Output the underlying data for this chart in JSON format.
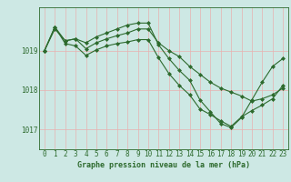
{
  "line1": [
    1019.0,
    1019.55,
    1019.25,
    1019.3,
    1019.2,
    1019.35,
    1019.45,
    1019.55,
    1019.65,
    1019.7,
    1019.7,
    1019.15,
    1018.8,
    1018.5,
    1018.25,
    1017.75,
    1017.45,
    1017.15,
    1017.05,
    1017.3,
    1017.75,
    1018.2,
    1018.6,
    1018.8
  ],
  "line2": [
    1019.0,
    1019.6,
    1019.25,
    1019.3,
    1019.05,
    1019.2,
    1019.3,
    1019.38,
    1019.45,
    1019.55,
    1019.55,
    1019.2,
    1019.0,
    1018.85,
    1018.6,
    1018.4,
    1018.2,
    1018.05,
    1017.95,
    1017.85,
    1017.72,
    1017.78,
    1017.88,
    1018.05
  ],
  "line3": [
    1019.0,
    1019.6,
    1019.18,
    1019.12,
    1018.88,
    1019.02,
    1019.12,
    1019.18,
    1019.22,
    1019.28,
    1019.28,
    1018.82,
    1018.42,
    1018.12,
    1017.88,
    1017.52,
    1017.38,
    1017.22,
    1017.08,
    1017.32,
    1017.48,
    1017.62,
    1017.78,
    1018.12
  ],
  "hours": [
    0,
    1,
    2,
    3,
    4,
    5,
    6,
    7,
    8,
    9,
    10,
    11,
    12,
    13,
    14,
    15,
    16,
    17,
    18,
    19,
    20,
    21,
    22,
    23
  ],
  "line_color": "#2d6a2d",
  "bg_color": "#cde8e4",
  "grid_color": "#e8b0b0",
  "ylabel_ticks": [
    1017,
    1018,
    1019
  ],
  "xlabel": "Graphe pression niveau de la mer (hPa)",
  "ylim": [
    1016.5,
    1020.1
  ],
  "xlim": [
    -0.5,
    23.5
  ],
  "marker": "D",
  "markersize": 2.0,
  "linewidth": 0.8,
  "tick_fontsize": 5.5,
  "xlabel_fontsize": 6.0,
  "ylabel_fontsize": 5.5
}
